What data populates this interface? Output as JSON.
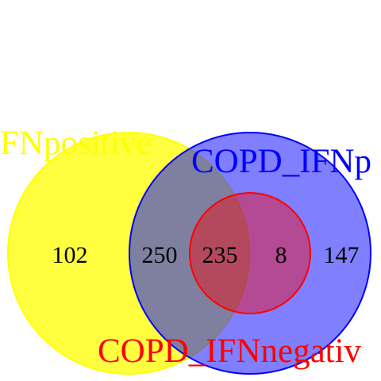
{
  "sets": [
    {
      "label": "FNpositive",
      "color": "#ffff00"
    },
    {
      "label": "COPD_IFNp",
      "color": "#0000ff"
    },
    {
      "label": "COPD_IFNnegativ",
      "color": "#ff0000"
    }
  ],
  "regions": {
    "positive_only": "102",
    "positive_and_copd": "250",
    "all_three": "235",
    "copd_and_negative": "8",
    "copd_only": "147"
  }
}
